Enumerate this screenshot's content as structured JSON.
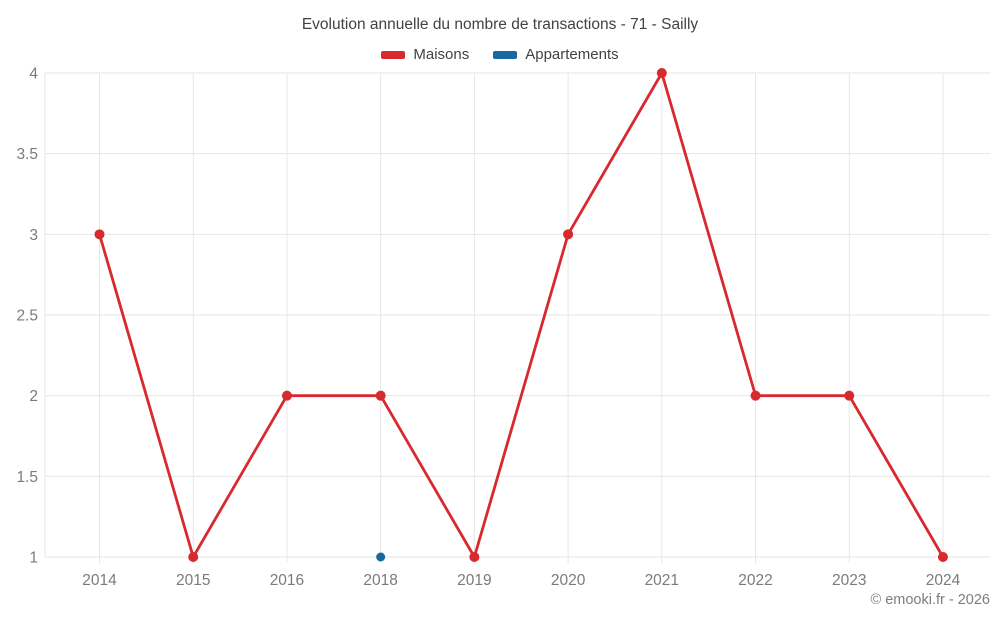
{
  "page": {
    "footer": "© emooki.fr - 2026"
  },
  "chart_data": {
    "type": "line",
    "title": "Evolution annuelle du nombre de transactions - 71 - Sailly",
    "categories": [
      "2014",
      "2015",
      "2016",
      "2018",
      "2019",
      "2020",
      "2021",
      "2022",
      "2023",
      "2024"
    ],
    "series": [
      {
        "name": "Maisons",
        "color": "#d7292e",
        "values": [
          3,
          1,
          2,
          2,
          1,
          3,
          4,
          2,
          2,
          1
        ],
        "marker_radius": 5
      },
      {
        "name": "Appartements",
        "color": "#17699f",
        "values": [
          null,
          null,
          null,
          1,
          null,
          null,
          null,
          null,
          null,
          null
        ],
        "marker_radius": 4.5
      }
    ],
    "xlabel": "",
    "ylabel": "",
    "yaxis": {
      "min": 1,
      "max": 4,
      "step": 0.5,
      "tick_labels": [
        "1",
        "1.5",
        "2",
        "2.5",
        "3",
        "3.5",
        "4"
      ]
    },
    "grid": true,
    "legend_position": "top",
    "colors": {
      "grid_line": "#e6e6e6",
      "axis_label_text": "#7b7b7b",
      "title_text": "#424242",
      "background": "#ffffff"
    }
  }
}
